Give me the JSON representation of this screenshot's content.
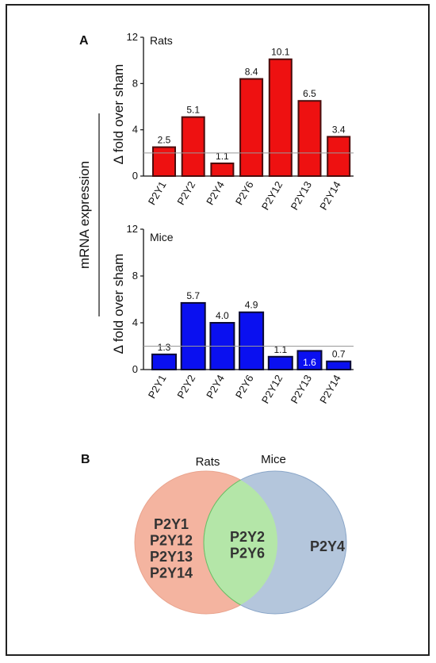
{
  "panels": {
    "a": "A",
    "b": "B"
  },
  "shared_ylabel": "mRNA expression",
  "chart_data": [
    {
      "type": "bar",
      "title": "Rats",
      "categories": [
        "P2Y1",
        "P2Y2",
        "P2Y4",
        "P2Y6",
        "P2Y12",
        "P2Y13",
        "P2Y14"
      ],
      "values": [
        2.5,
        5.1,
        1.1,
        8.4,
        10.1,
        6.5,
        3.4
      ],
      "value_labels": [
        "2.5",
        "5.1",
        "1.1",
        "8.4",
        "10.1",
        "6.5",
        "3.4"
      ],
      "ylabel": "Δ fold over sham",
      "ylim": [
        0,
        12
      ],
      "yticks": [
        0,
        4,
        8,
        12
      ],
      "reference_line": 2,
      "color": "#ee1111",
      "edge_color": "#4a0d0d"
    },
    {
      "type": "bar",
      "title": "Mice",
      "categories": [
        "P2Y1",
        "P2Y2",
        "P2Y4",
        "P2Y6",
        "P2Y12",
        "P2Y13",
        "P2Y14"
      ],
      "values": [
        1.3,
        5.7,
        4.0,
        4.9,
        1.1,
        1.6,
        0.7
      ],
      "value_labels": [
        "1.3",
        "5.7",
        "4.0",
        "4.9",
        "1.1",
        "1.6",
        "0.7"
      ],
      "ylabel": "Δ fold over sham",
      "ylim": [
        0,
        12
      ],
      "yticks": [
        0,
        4,
        8,
        12
      ],
      "reference_line": 2,
      "color": "#0a10f0",
      "edge_color": "#0a0a33"
    }
  ],
  "venn": {
    "left_label": "Rats",
    "right_label": "Mice",
    "left_only": [
      "P2Y1",
      "P2Y12",
      "P2Y13",
      "P2Y14"
    ],
    "shared": [
      "P2Y2",
      "P2Y6"
    ],
    "right_only": [
      "P2Y4"
    ],
    "left_color": "#f4b4a0",
    "right_color": "#b4c6dc",
    "overlap_color": "#b4e6a8"
  }
}
